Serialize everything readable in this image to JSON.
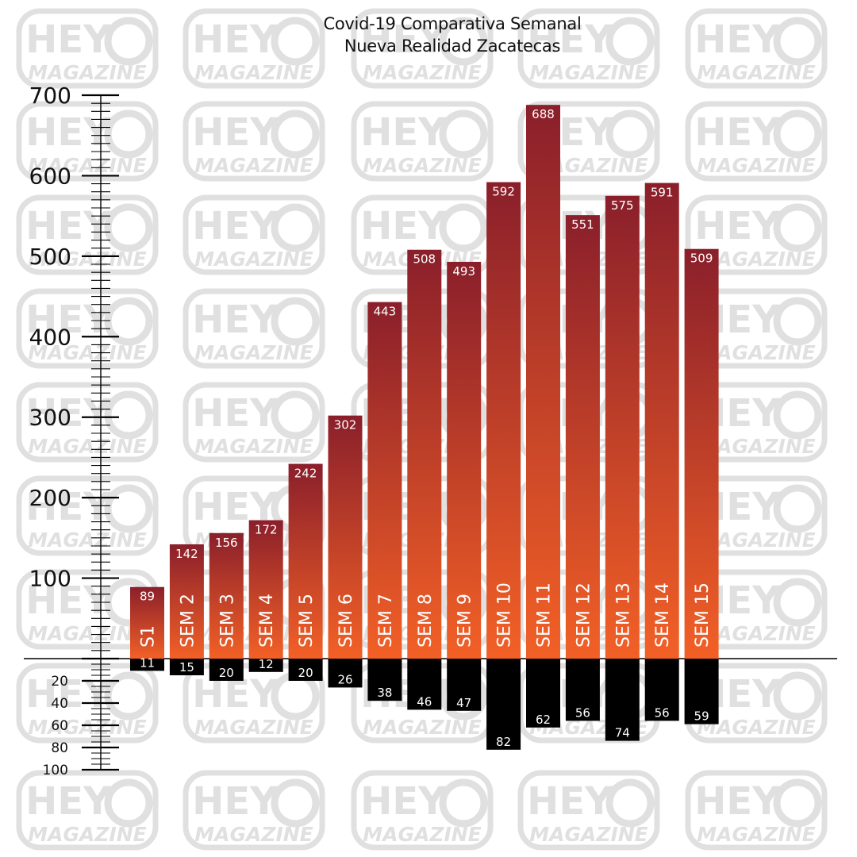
{
  "watermark": {
    "line1": "HEY",
    "line2": "MAGAZINE",
    "color": "#e0e0e0"
  },
  "chart_data": {
    "type": "bar",
    "title": "Covid-19 Comparativa Semanal",
    "subtitle": "Nueva Realidad  Zacatecas",
    "categories": [
      "S1",
      "SEM 2",
      "SEM 3",
      "SEM 4",
      "SEM 5",
      "SEM 6",
      "SEM 7",
      "SEM 8",
      "SEM 9",
      "SEM 10",
      "SEM 11",
      "SEM 12",
      "SEM 13",
      "SEM 14",
      "SEM 15"
    ],
    "series": [
      {
        "values": [
          89,
          142,
          156,
          172,
          242,
          302,
          443,
          508,
          493,
          592,
          688,
          551,
          575,
          591,
          509
        ],
        "color_top": "#8a1f2b",
        "color_bottom": "#f26026"
      },
      {
        "values": [
          11,
          15,
          20,
          12,
          20,
          26,
          38,
          46,
          47,
          82,
          62,
          56,
          74,
          56,
          59
        ],
        "direction": "down",
        "color": "#000000"
      }
    ],
    "y_ticks_up": [
      100,
      200,
      300,
      400,
      500,
      600,
      700
    ],
    "y_ticks_down": [
      20,
      40,
      60,
      80,
      100
    ],
    "ylim_up": [
      0,
      700
    ],
    "ylim_down": [
      0,
      100
    ]
  }
}
